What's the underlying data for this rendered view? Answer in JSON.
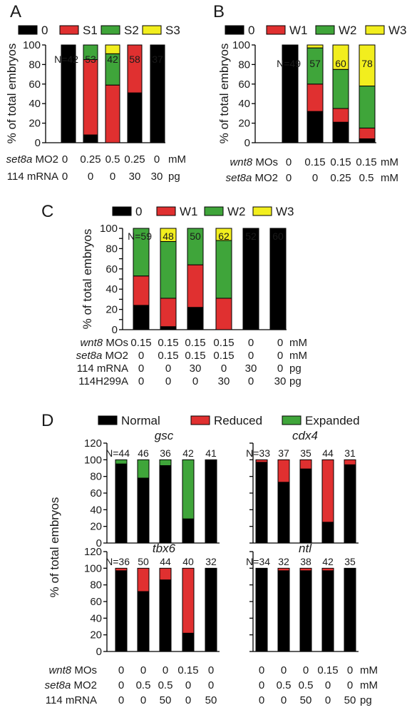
{
  "colors": {
    "black": "#000000",
    "red": "#e03030",
    "green": "#3fa53a",
    "yellow": "#f2ee1e"
  },
  "chart_data": [
    {
      "panel": "A",
      "type": "bar",
      "stacked": true,
      "ylabel": "% of total embryos",
      "ylim": [
        0,
        100
      ],
      "yticks": [
        0,
        20,
        40,
        60,
        80,
        100
      ],
      "legend": [
        {
          "name": "0",
          "color": "#000000"
        },
        {
          "name": "S1",
          "color": "#e03030"
        },
        {
          "name": "S2",
          "color": "#3fa53a"
        },
        {
          "name": "S3",
          "color": "#f2ee1e"
        }
      ],
      "n_labels": [
        "N=42",
        "53",
        "42",
        "58",
        "37"
      ],
      "series": [
        {
          "name": "0",
          "values": [
            100,
            8,
            0,
            51,
            100
          ]
        },
        {
          "name": "S1",
          "values": [
            0,
            77,
            59,
            49,
            0
          ]
        },
        {
          "name": "S2",
          "values": [
            0,
            15,
            32,
            0,
            0
          ]
        },
        {
          "name": "S3",
          "values": [
            0,
            0,
            9,
            0,
            0
          ]
        }
      ],
      "conditions": [
        {
          "label_italic": "set8a",
          "label_rest": " MO2",
          "values": [
            "0",
            "0.25",
            "0.5",
            "0.25",
            "0"
          ],
          "unit": "mM"
        },
        {
          "label_italic": "",
          "label_rest": "114 mRNA",
          "values": [
            "0",
            "0",
            "0",
            "30",
            "30"
          ],
          "unit": "pg"
        }
      ]
    },
    {
      "panel": "B",
      "type": "bar",
      "stacked": true,
      "ylabel": "% of total embryos",
      "ylim": [
        0,
        100
      ],
      "yticks": [
        0,
        20,
        40,
        60,
        80,
        100
      ],
      "legend": [
        {
          "name": "0",
          "color": "#000000"
        },
        {
          "name": "W1",
          "color": "#e03030"
        },
        {
          "name": "W2",
          "color": "#3fa53a"
        },
        {
          "name": "W3",
          "color": "#f2ee1e"
        }
      ],
      "n_labels": [
        "N=49",
        "57",
        "60",
        "78"
      ],
      "series": [
        {
          "name": "0",
          "values": [
            100,
            32,
            21,
            4
          ]
        },
        {
          "name": "W1",
          "values": [
            0,
            28,
            14,
            11
          ]
        },
        {
          "name": "W2",
          "values": [
            0,
            37,
            40,
            43
          ]
        },
        {
          "name": "W3",
          "values": [
            0,
            3,
            25,
            42
          ]
        }
      ],
      "conditions": [
        {
          "label_italic": "wnt8",
          "label_rest": " MOs",
          "values": [
            "0",
            "0.15",
            "0.15",
            "0.15"
          ],
          "unit": "mM"
        },
        {
          "label_italic": "set8a",
          "label_rest": " MO2",
          "values": [
            "0",
            "0",
            "0.25",
            "0.5"
          ],
          "unit": "mM"
        }
      ]
    },
    {
      "panel": "C",
      "type": "bar",
      "stacked": true,
      "ylabel": "% of total embryos",
      "ylim": [
        0,
        100
      ],
      "yticks": [
        0,
        10,
        20,
        30,
        40,
        50,
        60,
        70,
        80,
        90,
        100
      ],
      "legend": [
        {
          "name": "0",
          "color": "#000000"
        },
        {
          "name": "W1",
          "color": "#e03030"
        },
        {
          "name": "W2",
          "color": "#3fa53a"
        },
        {
          "name": "W3",
          "color": "#f2ee1e"
        }
      ],
      "n_labels": [
        "N=59",
        "48",
        "50",
        "62",
        "52",
        "60"
      ],
      "series": [
        {
          "name": "0",
          "values": [
            24,
            3,
            22,
            0,
            100,
            100
          ]
        },
        {
          "name": "W1",
          "values": [
            29,
            28,
            42,
            31,
            0,
            0
          ]
        },
        {
          "name": "W2",
          "values": [
            47,
            56,
            36,
            57,
            0,
            0
          ]
        },
        {
          "name": "W3",
          "values": [
            0,
            13,
            0,
            12,
            0,
            0
          ]
        }
      ],
      "conditions": [
        {
          "label_italic": "wnt8",
          "label_rest": " MOs",
          "values": [
            "0.15",
            "0.15",
            "0.15",
            "0.15",
            "0",
            "0"
          ],
          "unit": "mM"
        },
        {
          "label_italic": "set8a",
          "label_rest": " MO2",
          "values": [
            "0",
            "0.15",
            "0.15",
            "0.15",
            "0",
            "0"
          ],
          "unit": "mM"
        },
        {
          "label_italic": "",
          "label_rest": "114 mRNA",
          "values": [
            "0",
            "0",
            "30",
            "0",
            "30",
            "0"
          ],
          "unit": "pg"
        },
        {
          "label_italic": "",
          "label_rest": "114H299A",
          "values": [
            "0",
            "0",
            "0",
            "30",
            "0",
            "30"
          ],
          "unit": "pg"
        }
      ]
    },
    {
      "panel": "D",
      "type": "bar",
      "stacked": true,
      "ylabel": "% of total embryos",
      "ylim": [
        0,
        120
      ],
      "yticks": [
        0,
        20,
        40,
        60,
        80,
        100,
        120
      ],
      "legend": [
        {
          "name": "Normal",
          "color": "#000000"
        },
        {
          "name": "Reduced",
          "color": "#e03030"
        },
        {
          "name": "Expanded",
          "color": "#3fa53a"
        }
      ],
      "subplots": [
        {
          "title": "gsc",
          "n_labels": [
            "N=44",
            "46",
            "36",
            "42",
            "41"
          ],
          "series": [
            {
              "name": "Normal",
              "values": [
                95,
                78,
                93,
                29,
                100
              ]
            },
            {
              "name": "Reduced",
              "values": [
                0,
                0,
                0,
                0,
                0
              ]
            },
            {
              "name": "Expanded",
              "values": [
                5,
                22,
                7,
                71,
                0
              ]
            }
          ]
        },
        {
          "title": "cdx4",
          "n_labels": [
            "N=33",
            "37",
            "35",
            "44",
            "31"
          ],
          "series": [
            {
              "name": "Normal",
              "values": [
                97,
                73,
                89,
                25,
                94
              ]
            },
            {
              "name": "Reduced",
              "values": [
                3,
                27,
                11,
                75,
                6
              ]
            },
            {
              "name": "Expanded",
              "values": [
                0,
                0,
                0,
                0,
                0
              ]
            }
          ]
        },
        {
          "title": "tbx6",
          "n_labels": [
            "N=36",
            "50",
            "44",
            "40",
            "32"
          ],
          "series": [
            {
              "name": "Normal",
              "values": [
                97,
                72,
                86,
                22,
                100
              ]
            },
            {
              "name": "Reduced",
              "values": [
                3,
                28,
                14,
                78,
                0
              ]
            },
            {
              "name": "Expanded",
              "values": [
                0,
                0,
                0,
                0,
                0
              ]
            }
          ]
        },
        {
          "title": "ntl",
          "n_labels": [
            "N=34",
            "32",
            "38",
            "42",
            "35"
          ],
          "series": [
            {
              "name": "Normal",
              "values": [
                100,
                97,
                97,
                97,
                100
              ]
            },
            {
              "name": "Reduced",
              "values": [
                0,
                3,
                3,
                3,
                0
              ]
            },
            {
              "name": "Expanded",
              "values": [
                0,
                0,
                0,
                0,
                0
              ]
            }
          ]
        }
      ],
      "conditions": [
        {
          "label_italic": "wnt8",
          "label_rest": " MOs",
          "left": [
            "0",
            "0",
            "0",
            "0.15",
            "0"
          ],
          "right": [
            "0",
            "0",
            "0",
            "0.15",
            "0"
          ],
          "unit": "mM"
        },
        {
          "label_italic": "set8a",
          "label_rest": " MO2",
          "left": [
            "0",
            "0.5",
            "0.5",
            "0",
            "0"
          ],
          "right": [
            "0",
            "0.5",
            "0.5",
            "0",
            "0"
          ],
          "unit": "mM"
        },
        {
          "label_italic": "",
          "label_rest": "114 mRNA",
          "left": [
            "0",
            "0",
            "50",
            "0",
            "50"
          ],
          "right": [
            "0",
            "0",
            "50",
            "0",
            "50"
          ],
          "unit": "pg"
        }
      ]
    }
  ]
}
